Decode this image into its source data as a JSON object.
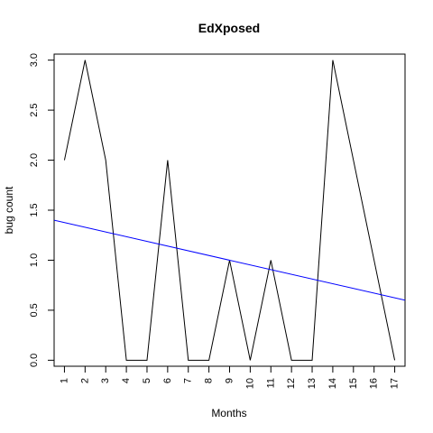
{
  "chart_data": {
    "type": "line",
    "title": "EdXposed",
    "xlabel": "Months",
    "ylabel": "bug count",
    "x": [
      1,
      2,
      3,
      4,
      5,
      6,
      7,
      8,
      9,
      10,
      11,
      12,
      13,
      14,
      15,
      16,
      17
    ],
    "xticks": [
      "1",
      "2",
      "3",
      "4",
      "5",
      "6",
      "7",
      "8",
      "9",
      "10",
      "11",
      "12",
      "13",
      "14",
      "15",
      "16",
      "17"
    ],
    "yticks": [
      "0.0",
      "0.5",
      "1.0",
      "1.5",
      "2.0",
      "2.5",
      "3.0"
    ],
    "xlim": [
      0.5,
      17.5
    ],
    "ylim": [
      -0.06,
      3.06
    ],
    "series": [
      {
        "values": [
          2,
          3,
          2,
          0,
          0,
          2,
          0,
          0,
          1,
          0,
          1,
          0,
          0,
          3,
          2,
          1,
          0
        ],
        "color": "#000000"
      }
    ],
    "trendline": {
      "color": "#0000ff",
      "points": [
        [
          0.5,
          1.4
        ],
        [
          17.5,
          0.6
        ]
      ]
    },
    "grid": false,
    "legend": "none"
  }
}
